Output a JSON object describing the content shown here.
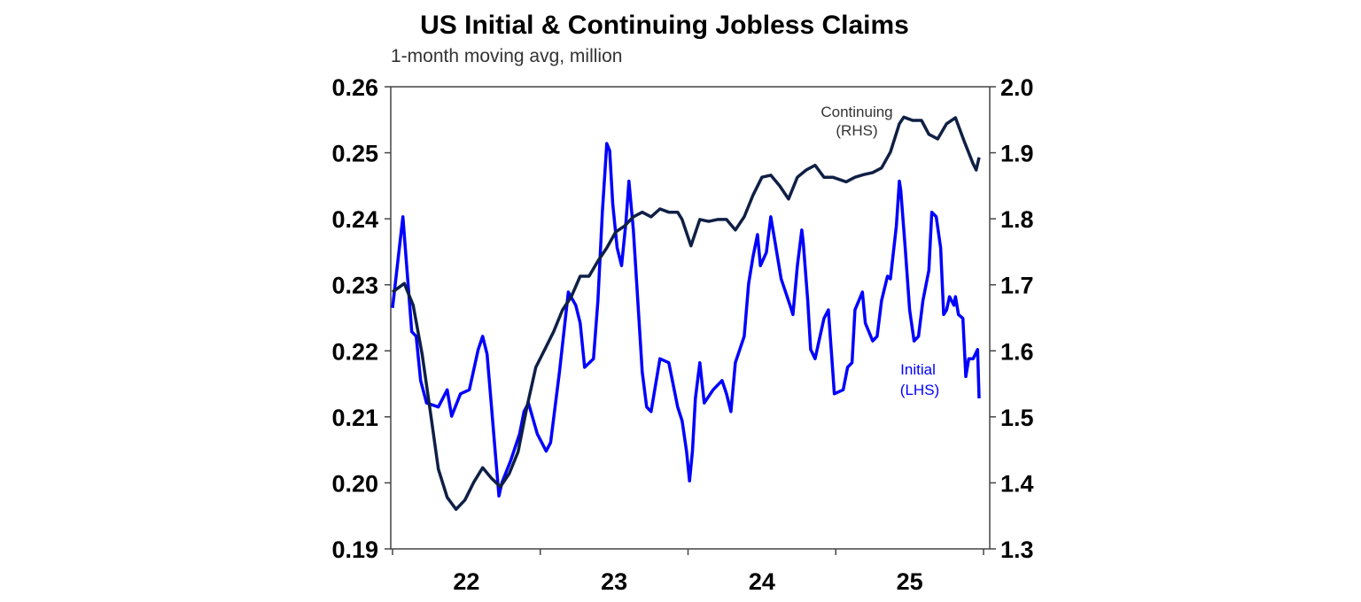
{
  "chart_data": {
    "type": "line",
    "title": "US Initial & Continuing Jobless Claims",
    "subtitle": "1-month moving avg, million",
    "xlim": [
      2022,
      2026
    ],
    "x_ticks": [
      {
        "value": 2022.5,
        "label": "22"
      },
      {
        "value": 2023.5,
        "label": "23"
      },
      {
        "value": 2024.5,
        "label": "24"
      },
      {
        "value": 2025.5,
        "label": "25"
      }
    ],
    "y_left": {
      "lim": [
        0.19,
        0.26
      ],
      "ticks": [
        "0.19",
        "0.20",
        "0.21",
        "0.22",
        "0.23",
        "0.24",
        "0.25",
        "0.26"
      ]
    },
    "y_right": {
      "lim": [
        1.3,
        2.0
      ],
      "ticks": [
        "1.3",
        "1.4",
        "1.5",
        "1.6",
        "1.7",
        "1.8",
        "1.9",
        "2.0"
      ]
    },
    "grid": false,
    "series": [
      {
        "name": "Initial (LHS)",
        "label_lines": [
          "Initial",
          "(LHS)"
        ],
        "axis": "left",
        "color": "#0000FF",
        "points": [
          [
            2022.0,
            0.2265
          ],
          [
            2022.07,
            0.2403
          ],
          [
            2022.13,
            0.2229
          ],
          [
            2022.16,
            0.2222
          ],
          [
            2022.19,
            0.2155
          ],
          [
            2022.23,
            0.2121
          ],
          [
            2022.31,
            0.2115
          ],
          [
            2022.37,
            0.2141
          ],
          [
            2022.4,
            0.2101
          ],
          [
            2022.46,
            0.2135
          ],
          [
            2022.52,
            0.2141
          ],
          [
            2022.58,
            0.2202
          ],
          [
            2022.61,
            0.2222
          ],
          [
            2022.64,
            0.2195
          ],
          [
            2022.67,
            0.2115
          ],
          [
            2022.7,
            0.2034
          ],
          [
            2022.72,
            0.198
          ],
          [
            2022.74,
            0.2
          ],
          [
            2022.8,
            0.2034
          ],
          [
            2022.86,
            0.2074
          ],
          [
            2022.89,
            0.2108
          ],
          [
            2022.92,
            0.2121
          ],
          [
            2022.98,
            0.2074
          ],
          [
            2023.04,
            0.2048
          ],
          [
            2023.07,
            0.2061
          ],
          [
            2023.13,
            0.2168
          ],
          [
            2023.19,
            0.2289
          ],
          [
            2023.24,
            0.2269
          ],
          [
            2023.27,
            0.2242
          ],
          [
            2023.3,
            0.2175
          ],
          [
            2023.36,
            0.2188
          ],
          [
            2023.39,
            0.2276
          ],
          [
            2023.42,
            0.241
          ],
          [
            2023.45,
            0.2514
          ],
          [
            2023.47,
            0.2503
          ],
          [
            2023.49,
            0.2423
          ],
          [
            2023.52,
            0.2356
          ],
          [
            2023.55,
            0.2329
          ],
          [
            2023.58,
            0.2396
          ],
          [
            2023.6,
            0.2457
          ],
          [
            2023.63,
            0.2383
          ],
          [
            2023.66,
            0.2276
          ],
          [
            2023.69,
            0.2168
          ],
          [
            2023.72,
            0.2115
          ],
          [
            2023.75,
            0.2108
          ],
          [
            2023.81,
            0.2188
          ],
          [
            2023.87,
            0.2182
          ],
          [
            2023.93,
            0.2115
          ],
          [
            2023.96,
            0.2094
          ],
          [
            2023.99,
            0.2048
          ],
          [
            2024.01,
            0.2003
          ],
          [
            2024.03,
            0.2048
          ],
          [
            2024.05,
            0.2128
          ],
          [
            2024.08,
            0.2182
          ],
          [
            2024.11,
            0.2121
          ],
          [
            2024.17,
            0.2141
          ],
          [
            2024.23,
            0.2155
          ],
          [
            2024.26,
            0.2135
          ],
          [
            2024.29,
            0.2108
          ],
          [
            2024.32,
            0.2182
          ],
          [
            2024.38,
            0.2222
          ],
          [
            2024.41,
            0.2302
          ],
          [
            2024.44,
            0.2343
          ],
          [
            2024.47,
            0.2376
          ],
          [
            2024.49,
            0.2329
          ],
          [
            2024.53,
            0.2349
          ],
          [
            2024.56,
            0.2403
          ],
          [
            2024.59,
            0.2363
          ],
          [
            2024.63,
            0.2309
          ],
          [
            2024.69,
            0.2269
          ],
          [
            2024.71,
            0.2255
          ],
          [
            2024.74,
            0.2329
          ],
          [
            2024.77,
            0.2383
          ],
          [
            2024.78,
            0.2363
          ],
          [
            2024.81,
            0.2276
          ],
          [
            2024.83,
            0.2202
          ],
          [
            2024.86,
            0.2188
          ],
          [
            2024.92,
            0.2249
          ],
          [
            2024.95,
            0.2262
          ],
          [
            2024.98,
            0.2168
          ],
          [
            2024.99,
            0.2135
          ],
          [
            2025.05,
            0.2141
          ],
          [
            2025.08,
            0.2175
          ],
          [
            2025.11,
            0.2182
          ],
          [
            2025.13,
            0.2262
          ],
          [
            2025.18,
            0.2289
          ],
          [
            2025.2,
            0.2242
          ],
          [
            2025.25,
            0.2215
          ],
          [
            2025.28,
            0.2222
          ],
          [
            2025.31,
            0.2276
          ],
          [
            2025.35,
            0.2313
          ],
          [
            2025.37,
            0.2309
          ],
          [
            2025.41,
            0.2389
          ],
          [
            2025.43,
            0.2457
          ],
          [
            2025.44,
            0.2443
          ],
          [
            2025.47,
            0.2356
          ],
          [
            2025.5,
            0.2262
          ],
          [
            2025.53,
            0.2215
          ],
          [
            2025.56,
            0.2222
          ],
          [
            2025.59,
            0.2276
          ],
          [
            2025.63,
            0.2322
          ],
          [
            2025.65,
            0.241
          ],
          [
            2025.68,
            0.2403
          ],
          [
            2025.71,
            0.2356
          ],
          [
            2025.73,
            0.2255
          ],
          [
            2025.75,
            0.2262
          ],
          [
            2025.77,
            0.2282
          ],
          [
            2025.8,
            0.2269
          ],
          [
            2025.81,
            0.2282
          ],
          [
            2025.83,
            0.2255
          ],
          [
            2025.86,
            0.2249
          ],
          [
            2025.88,
            0.2161
          ],
          [
            2025.9,
            0.2188
          ],
          [
            2025.93,
            0.2188
          ],
          [
            2025.96,
            0.2202
          ],
          [
            2025.97,
            0.2128
          ]
        ]
      },
      {
        "name": "Continuing (RHS)",
        "label_lines": [
          "Continuing",
          "(RHS)"
        ],
        "axis": "right",
        "color": "#0F1F45",
        "points": [
          [
            2022.0,
            1.689
          ],
          [
            2022.08,
            1.702
          ],
          [
            2022.14,
            1.669
          ],
          [
            2022.2,
            1.595
          ],
          [
            2022.26,
            1.501
          ],
          [
            2022.31,
            1.421
          ],
          [
            2022.37,
            1.378
          ],
          [
            2022.43,
            1.36
          ],
          [
            2022.49,
            1.374
          ],
          [
            2022.55,
            1.401
          ],
          [
            2022.61,
            1.423
          ],
          [
            2022.67,
            1.407
          ],
          [
            2022.73,
            1.394
          ],
          [
            2022.79,
            1.414
          ],
          [
            2022.85,
            1.447
          ],
          [
            2022.91,
            1.515
          ],
          [
            2022.97,
            1.575
          ],
          [
            2023.03,
            1.602
          ],
          [
            2023.09,
            1.629
          ],
          [
            2023.15,
            1.662
          ],
          [
            2023.21,
            1.682
          ],
          [
            2023.27,
            1.713
          ],
          [
            2023.33,
            1.713
          ],
          [
            2023.39,
            1.736
          ],
          [
            2023.45,
            1.756
          ],
          [
            2023.51,
            1.78
          ],
          [
            2023.57,
            1.789
          ],
          [
            2023.63,
            1.803
          ],
          [
            2023.69,
            1.81
          ],
          [
            2023.75,
            1.803
          ],
          [
            2023.81,
            1.815
          ],
          [
            2023.87,
            1.81
          ],
          [
            2023.93,
            1.81
          ],
          [
            2023.96,
            1.799
          ],
          [
            2024.02,
            1.759
          ],
          [
            2024.08,
            1.799
          ],
          [
            2024.14,
            1.796
          ],
          [
            2024.2,
            1.799
          ],
          [
            2024.26,
            1.799
          ],
          [
            2024.32,
            1.783
          ],
          [
            2024.38,
            1.803
          ],
          [
            2024.44,
            1.836
          ],
          [
            2024.5,
            1.863
          ],
          [
            2024.56,
            1.866
          ],
          [
            2024.62,
            1.85
          ],
          [
            2024.68,
            1.83
          ],
          [
            2024.74,
            1.863
          ],
          [
            2024.8,
            1.874
          ],
          [
            2024.86,
            1.881
          ],
          [
            2024.92,
            1.863
          ],
          [
            2024.98,
            1.863
          ],
          [
            2025.07,
            1.856
          ],
          [
            2025.13,
            1.863
          ],
          [
            2025.19,
            1.867
          ],
          [
            2025.25,
            1.87
          ],
          [
            2025.31,
            1.877
          ],
          [
            2025.37,
            1.901
          ],
          [
            2025.43,
            1.944
          ],
          [
            2025.46,
            1.954
          ],
          [
            2025.52,
            1.949
          ],
          [
            2025.58,
            1.949
          ],
          [
            2025.63,
            1.928
          ],
          [
            2025.69,
            1.921
          ],
          [
            2025.75,
            1.944
          ],
          [
            2025.81,
            1.953
          ],
          [
            2025.87,
            1.917
          ],
          [
            2025.93,
            1.883
          ],
          [
            2025.95,
            1.874
          ],
          [
            2025.97,
            1.893
          ]
        ]
      }
    ]
  }
}
